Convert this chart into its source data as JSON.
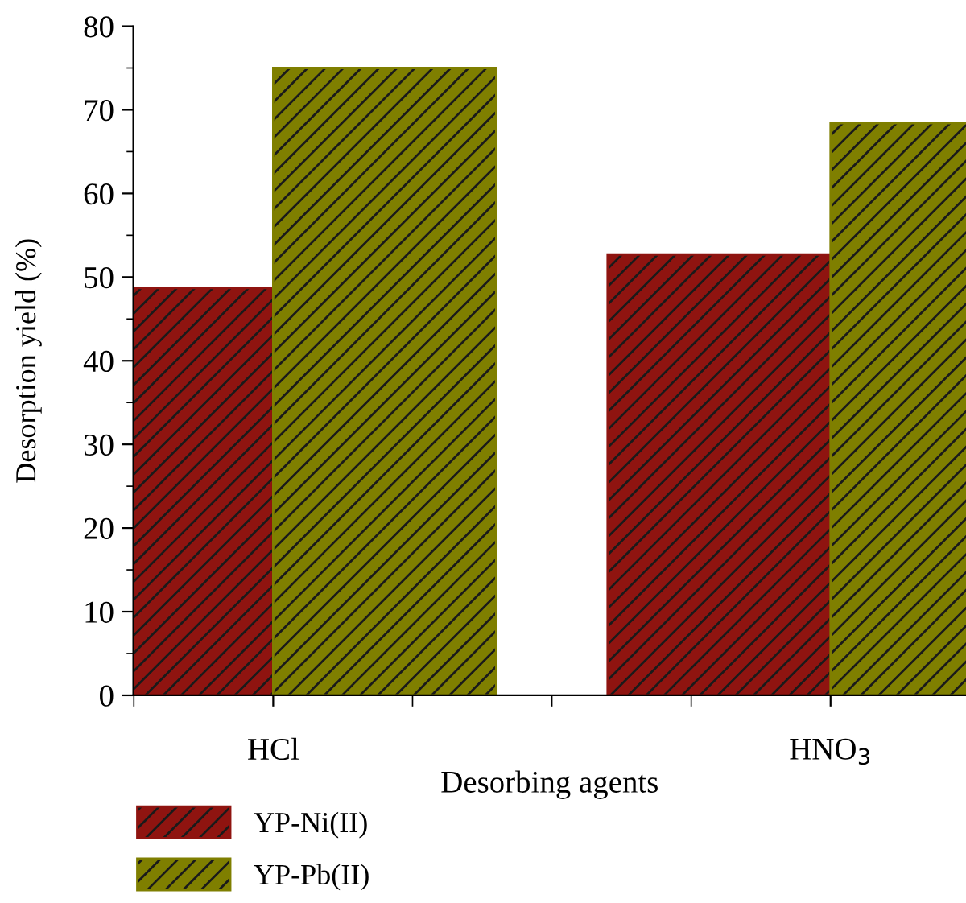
{
  "chart_data": {
    "type": "bar",
    "xlabel": "Desorbing agents",
    "ylabel": "Desorption yield (%)",
    "categories": [
      "HCl",
      "HNO$_{3}$"
    ],
    "series": [
      {
        "name": "YP-Ni(II)",
        "color": "#8f1410",
        "values": [
          48.7,
          52.7
        ]
      },
      {
        "name": "YP-Pb(II)",
        "color": "#7f7f00",
        "values": [
          75,
          68.4
        ]
      }
    ],
    "ylim": [
      0,
      80
    ],
    "yticks": [
      0,
      10,
      20,
      30,
      40,
      50,
      60,
      70,
      80
    ],
    "grid": false,
    "legend": "bottom left"
  }
}
